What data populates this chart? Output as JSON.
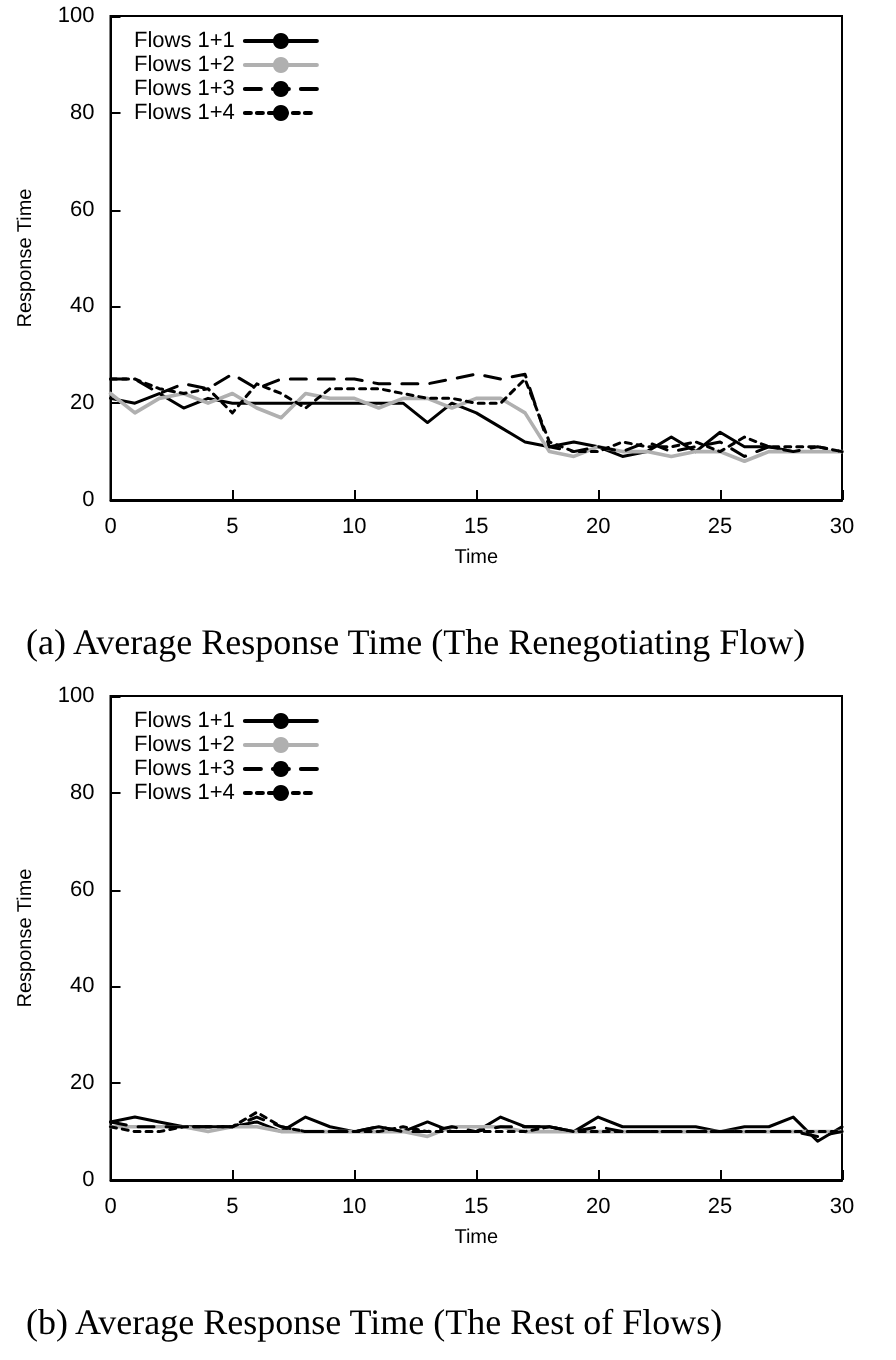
{
  "chart_data": [
    {
      "type": "line",
      "title": "(a) Average Response Time (The Renegotiating Flow)",
      "xlabel": "Time",
      "ylabel": "Response Time",
      "x": [
        0,
        1,
        2,
        3,
        4,
        5,
        6,
        7,
        8,
        9,
        10,
        11,
        12,
        13,
        14,
        15,
        16,
        17,
        18,
        19,
        20,
        21,
        22,
        23,
        24,
        25,
        26,
        27,
        28,
        29,
        30
      ],
      "xlim": [
        0,
        30
      ],
      "xticks": [
        0,
        5,
        10,
        15,
        20,
        25,
        30
      ],
      "ylim": [
        0,
        100
      ],
      "yticks": [
        0,
        20,
        40,
        60,
        80,
        100
      ],
      "grid": false,
      "legend": "top left",
      "marker": "none",
      "series": [
        {
          "name": "Flows 1+1",
          "color": "#000000",
          "line_style": "solid",
          "values": [
            21,
            20,
            22,
            19,
            21,
            20,
            20,
            20,
            20,
            20,
            20,
            20,
            20,
            16,
            20,
            18,
            15,
            12,
            11,
            12,
            11,
            9,
            10,
            13,
            10,
            14,
            11,
            11,
            10,
            10,
            10
          ]
        },
        {
          "name": "Flows 1+2",
          "color": "#b0b0b0",
          "line_style": "solid",
          "values": [
            22,
            18,
            21,
            22,
            20,
            22,
            19,
            17,
            22,
            21,
            21,
            19,
            21,
            21,
            19,
            21,
            21,
            18,
            10,
            9,
            11,
            10,
            10,
            9,
            10,
            10,
            8,
            10,
            10,
            10,
            10
          ]
        },
        {
          "name": "Flows 1+3",
          "color": "#000000",
          "line_style": "dashed",
          "values": [
            25,
            25,
            22,
            24,
            23,
            26,
            23,
            25,
            25,
            25,
            25,
            24,
            24,
            24,
            25,
            26,
            25,
            26,
            11,
            10,
            11,
            10,
            12,
            10,
            11,
            12,
            9,
            11,
            10,
            11,
            10
          ]
        },
        {
          "name": "Flows 1+4",
          "color": "#000000",
          "line_style": "dotted",
          "values": [
            25,
            25,
            23,
            22,
            23,
            18,
            24,
            22,
            19,
            23,
            23,
            23,
            22,
            21,
            21,
            20,
            20,
            25,
            12,
            10,
            10,
            12,
            11,
            11,
            12,
            10,
            13,
            11,
            11,
            11,
            10
          ]
        }
      ]
    },
    {
      "type": "line",
      "title": "(b) Average Response Time (The Rest of Flows)",
      "xlabel": "Time",
      "ylabel": "Response Time",
      "x": [
        0,
        1,
        2,
        3,
        4,
        5,
        6,
        7,
        8,
        9,
        10,
        11,
        12,
        13,
        14,
        15,
        16,
        17,
        18,
        19,
        20,
        21,
        22,
        23,
        24,
        25,
        26,
        27,
        28,
        29,
        30
      ],
      "xlim": [
        0,
        30
      ],
      "xticks": [
        0,
        5,
        10,
        15,
        20,
        25,
        30
      ],
      "ylim": [
        0,
        100
      ],
      "yticks": [
        0,
        20,
        40,
        60,
        80,
        100
      ],
      "grid": false,
      "legend": "top left",
      "marker": "none",
      "series": [
        {
          "name": "Flows 1+1",
          "color": "#000000",
          "line_style": "solid",
          "values": [
            12,
            13,
            12,
            11,
            11,
            11,
            12,
            10,
            13,
            11,
            10,
            11,
            10,
            12,
            10,
            10,
            13,
            11,
            11,
            10,
            13,
            11,
            11,
            11,
            11,
            10,
            11,
            11,
            13,
            8,
            11
          ]
        },
        {
          "name": "Flows 1+2",
          "color": "#b0b0b0",
          "line_style": "solid",
          "values": [
            11,
            11,
            11,
            11,
            10,
            11,
            11,
            10,
            10,
            10,
            10,
            10,
            10,
            9,
            11,
            11,
            11,
            10,
            10,
            10,
            10,
            10,
            10,
            10,
            10,
            10,
            10,
            10,
            10,
            10,
            10
          ]
        },
        {
          "name": "Flows 1+3",
          "color": "#000000",
          "line_style": "dashed",
          "values": [
            12,
            11,
            11,
            11,
            11,
            11,
            13,
            11,
            10,
            10,
            10,
            11,
            10,
            10,
            11,
            10,
            11,
            11,
            11,
            10,
            11,
            10,
            10,
            10,
            10,
            10,
            10,
            10,
            10,
            9,
            10
          ]
        },
        {
          "name": "Flows 1+4",
          "color": "#000000",
          "line_style": "dotted",
          "values": [
            11,
            10,
            10,
            11,
            11,
            11,
            14,
            11,
            10,
            10,
            10,
            10,
            11,
            10,
            10,
            10,
            10,
            10,
            11,
            10,
            10,
            10,
            10,
            10,
            10,
            10,
            10,
            10,
            10,
            10,
            10
          ]
        }
      ]
    }
  ]
}
